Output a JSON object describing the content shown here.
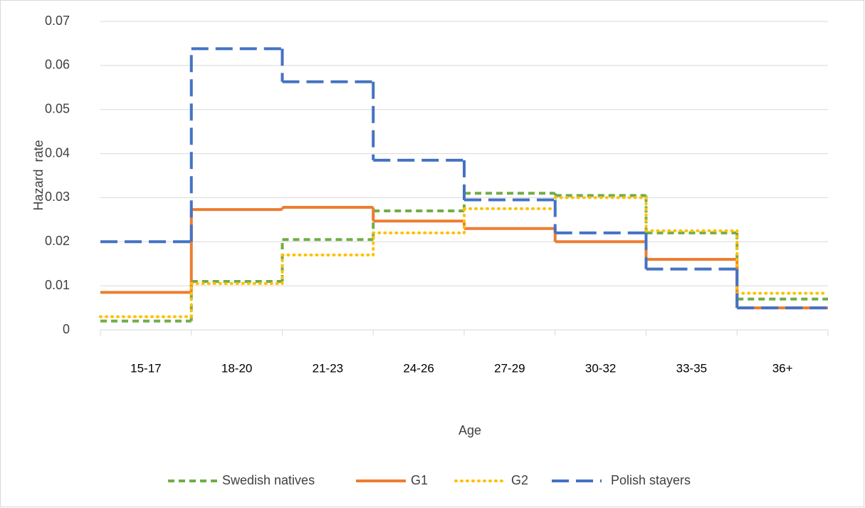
{
  "chart_data": {
    "type": "step",
    "x_label": "Age",
    "y_label": "Hazard  rate",
    "categories": [
      "15-17",
      "18-20",
      "21-23",
      "24-26",
      "27-29",
      "30-32",
      "33-35",
      "36+"
    ],
    "series": [
      {
        "name": "Swedish natives",
        "color": "#70ad47",
        "dash": "9,6",
        "values": [
          0.002,
          0.011,
          0.0205,
          0.027,
          0.031,
          0.0305,
          0.022,
          0.007
        ]
      },
      {
        "name": "G1",
        "color": "#ed7d31",
        "dash": "none",
        "values": [
          0.0085,
          0.0273,
          0.0278,
          0.0247,
          0.023,
          0.02,
          0.016,
          0.005
        ]
      },
      {
        "name": "G2",
        "color": "#ffc000",
        "dash": "1,7",
        "values": [
          0.003,
          0.0105,
          0.017,
          0.022,
          0.0275,
          0.03,
          0.0225,
          0.0083
        ]
      },
      {
        "name": "Polish stayers",
        "color": "#4472c4",
        "dash": "24,10",
        "values": [
          0.02,
          0.0638,
          0.0563,
          0.0385,
          0.0295,
          0.022,
          0.0138,
          0.005
        ]
      }
    ],
    "ylim": [
      0,
      0.07
    ],
    "yticks": [
      0,
      0.01,
      0.02,
      0.03,
      0.04,
      0.05,
      0.06,
      0.07
    ],
    "grid": true,
    "legend": "bottom"
  }
}
